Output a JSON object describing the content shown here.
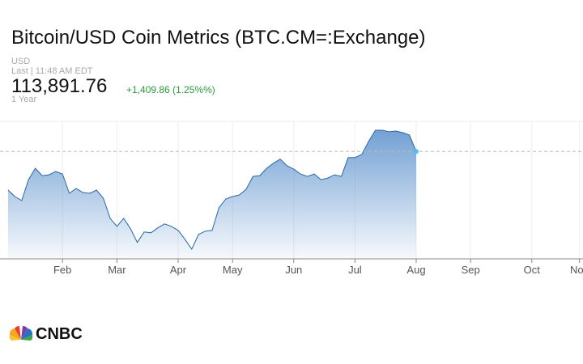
{
  "header": {
    "title": "Bitcoin/USD Coin Metrics (BTC.CM=:Exchange)",
    "currency": "USD",
    "last_time": "Last | 11:48 AM EDT",
    "price": "113,891.76",
    "change": "+1,409.86 (1.25%%)",
    "range": "1 Year"
  },
  "chart_data": {
    "type": "area",
    "color": "#2a66a8",
    "fill_color": "#5a90cc",
    "last_point_color": "#4cc3ef",
    "watermark": "CNBC",
    "grid": true,
    "categories": [
      null,
      null,
      null,
      null,
      null,
      null,
      null,
      null,
      "Feb",
      null,
      null,
      null,
      null,
      null,
      null,
      null,
      "Mar",
      null,
      null,
      null,
      null,
      null,
      null,
      null,
      null,
      "Apr",
      null,
      null,
      null,
      null,
      null,
      null,
      null,
      "May",
      null,
      null,
      null,
      null,
      null,
      null,
      null,
      null,
      "Jun",
      null,
      null,
      null,
      null,
      null,
      null,
      null,
      null,
      "Jul",
      null,
      null,
      null,
      null,
      null,
      null,
      null,
      null,
      "Aug",
      null,
      null,
      null,
      null,
      null,
      null,
      null,
      "Sep",
      null,
      null,
      null,
      null,
      null,
      null,
      null,
      null,
      "Oct",
      null,
      null,
      null,
      null,
      null,
      null,
      "Nov"
    ],
    "values": [
      99500,
      97100,
      95600,
      103400,
      107600,
      104900,
      105200,
      106400,
      105500,
      98300,
      100100,
      98600,
      98300,
      99500,
      96500,
      89000,
      86000,
      89000,
      85100,
      80000,
      83900,
      83600,
      85400,
      86900,
      86000,
      84500,
      81200,
      77500,
      83000,
      84200,
      84500,
      92900,
      96200,
      97100,
      97700,
      99800,
      104600,
      104900,
      107600,
      109500,
      111000,
      108600,
      107300,
      105500,
      104600,
      105500,
      103400,
      104000,
      105200,
      104600,
      111600,
      111600,
      112800,
      117600,
      121800,
      121800,
      121200,
      121500,
      120900,
      120000,
      113891.76,
      null,
      null,
      null,
      null,
      null,
      null,
      null,
      null,
      null,
      null,
      null,
      null,
      null,
      null,
      null,
      null,
      null,
      null,
      null,
      null,
      null,
      null,
      null,
      null
    ],
    "ylim": [
      73900,
      125100
    ]
  },
  "footer": {
    "logo": "CNBC"
  }
}
